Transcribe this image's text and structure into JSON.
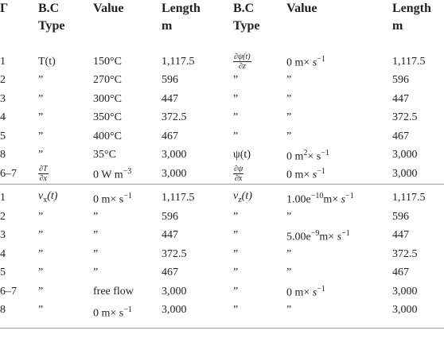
{
  "table": {
    "header": [
      "Γ",
      "B.C\nType",
      "Value",
      "Length\nm",
      "B.C\nType",
      "Value",
      "Length\nm"
    ],
    "sections": [
      {
        "rows": [
          [
            "1",
            "T(t)",
            "150°C",
            "1,117.5",
            [
              {
                "num": "∂ψ(t)",
                "den": "∂z"
              }
            ],
            [
              "0 m× ",
              {
                "i": "s"
              },
              {
                "sup": "−1"
              }
            ],
            "1,117.5"
          ],
          [
            "2",
            "”",
            "270°C",
            "596",
            "”",
            "”",
            "596"
          ],
          [
            "3",
            "”",
            "300°C",
            "447",
            "”",
            "”",
            "447"
          ],
          [
            "4",
            "”",
            "350°C",
            "372.5",
            "”",
            "”",
            "372.5"
          ],
          [
            "5",
            "”",
            "400°C",
            "467",
            "”",
            "”",
            "467"
          ],
          [
            "8",
            "”",
            "35°C",
            "3,000",
            "ψ(t)",
            [
              "0 m",
              {
                "sup": "2"
              },
              "× s",
              {
                "sup": "−1"
              }
            ],
            "3,000"
          ],
          [
            "6–7",
            [
              {
                "num": "∂T",
                "den": "∂x"
              }
            ],
            [
              "0 W m",
              {
                "sup": "−3"
              }
            ],
            "3,000",
            [
              {
                "num": "∂ψ",
                "den": "∂x"
              }
            ],
            [
              "0 m× ",
              {
                "i": "s"
              },
              {
                "sup": "−1"
              }
            ],
            "3,000"
          ]
        ]
      },
      {
        "rows": [
          [
            "1",
            [
              {
                "i": "v"
              },
              {
                "sub": "x"
              },
              {
                "i": "(t)"
              }
            ],
            [
              "0 m× s",
              {
                "sup": "−1"
              }
            ],
            "1,117.5",
            [
              {
                "i": "v"
              },
              {
                "sub": "z"
              },
              {
                "i": "(t)"
              }
            ],
            [
              "1.00e",
              {
                "sup": "−10"
              },
              "m× ",
              {
                "i": "s"
              },
              {
                "sup": "−1"
              }
            ],
            "1,117.5"
          ],
          [
            "2",
            "”",
            "”",
            "596",
            "”",
            "”",
            "596"
          ],
          [
            "3",
            "”",
            "”",
            "447",
            "”",
            [
              "5.00e",
              {
                "sup": "−9"
              },
              "m× ",
              {
                "i": "s"
              },
              {
                "sup": "−1"
              }
            ],
            "447"
          ],
          [
            "4",
            "”",
            "”",
            "372.5",
            "”",
            "”",
            "372.5"
          ],
          [
            "5",
            "”",
            "”",
            "467",
            "”",
            "”",
            "467"
          ],
          [
            "6–7",
            "”",
            "free flow",
            "3,000",
            "”",
            [
              "0 m× ",
              {
                "i": "s"
              },
              {
                "sup": "−1"
              }
            ],
            "3,000"
          ],
          [
            "8",
            "”",
            [
              "0 m× s",
              {
                "sup": "−1"
              }
            ],
            "3,000",
            "”",
            "”",
            "3,000"
          ]
        ]
      }
    ]
  }
}
